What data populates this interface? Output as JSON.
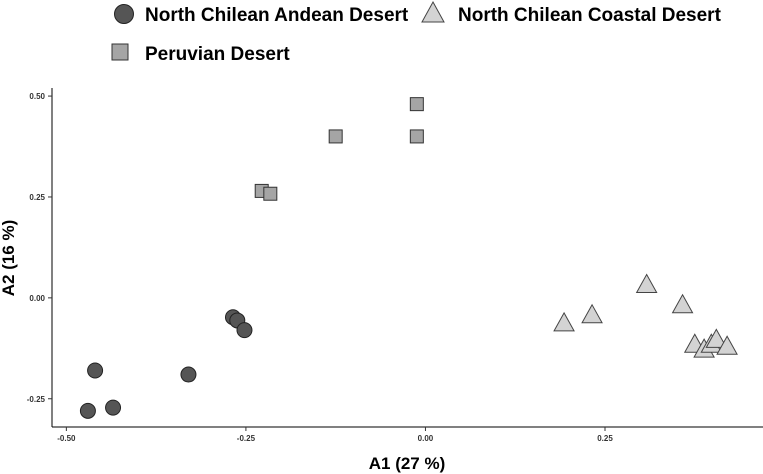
{
  "chart_data": {
    "type": "scatter",
    "xlabel": "A1 (27 %)",
    "ylabel": "A2 (16 %)",
    "xlim": [
      -0.52,
      0.47
    ],
    "ylim": [
      -0.32,
      0.52
    ],
    "x_ticks": [
      {
        "value": -0.5,
        "label": "-0.50"
      },
      {
        "value": -0.25,
        "label": "-0.25"
      },
      {
        "value": 0.0,
        "label": "0.00"
      },
      {
        "value": 0.25,
        "label": "0.25"
      }
    ],
    "y_ticks": [
      {
        "value": 0.5,
        "label": "0.50"
      },
      {
        "value": 0.25,
        "label": "0.25"
      },
      {
        "value": 0.0,
        "label": "0.00"
      },
      {
        "value": -0.25,
        "label": "-0.25"
      }
    ],
    "grid": false,
    "legend_position": "top",
    "series": [
      {
        "name": "North Chilean Andean Desert",
        "shape": "circle",
        "color": "#555555",
        "points": [
          {
            "x": -0.47,
            "y": -0.28
          },
          {
            "x": -0.46,
            "y": -0.18
          },
          {
            "x": -0.435,
            "y": -0.272
          },
          {
            "x": -0.33,
            "y": -0.19
          },
          {
            "x": -0.268,
            "y": -0.048
          },
          {
            "x": -0.262,
            "y": -0.056
          },
          {
            "x": -0.252,
            "y": -0.08
          }
        ]
      },
      {
        "name": "North Chilean Coastal Desert",
        "shape": "triangle",
        "color": "#d3d3d3",
        "points": [
          {
            "x": 0.193,
            "y": -0.062
          },
          {
            "x": 0.232,
            "y": -0.042
          },
          {
            "x": 0.308,
            "y": 0.033
          },
          {
            "x": 0.358,
            "y": -0.017
          },
          {
            "x": 0.375,
            "y": -0.115
          },
          {
            "x": 0.388,
            "y": -0.127
          },
          {
            "x": 0.398,
            "y": -0.115
          },
          {
            "x": 0.405,
            "y": -0.103
          },
          {
            "x": 0.42,
            "y": -0.12
          }
        ]
      },
      {
        "name": "Peruvian Desert",
        "shape": "square",
        "color": "#a5a5a5",
        "points": [
          {
            "x": -0.012,
            "y": 0.48
          },
          {
            "x": -0.125,
            "y": 0.4
          },
          {
            "x": -0.012,
            "y": 0.4
          },
          {
            "x": -0.228,
            "y": 0.265
          },
          {
            "x": -0.216,
            "y": 0.258
          }
        ]
      }
    ]
  }
}
